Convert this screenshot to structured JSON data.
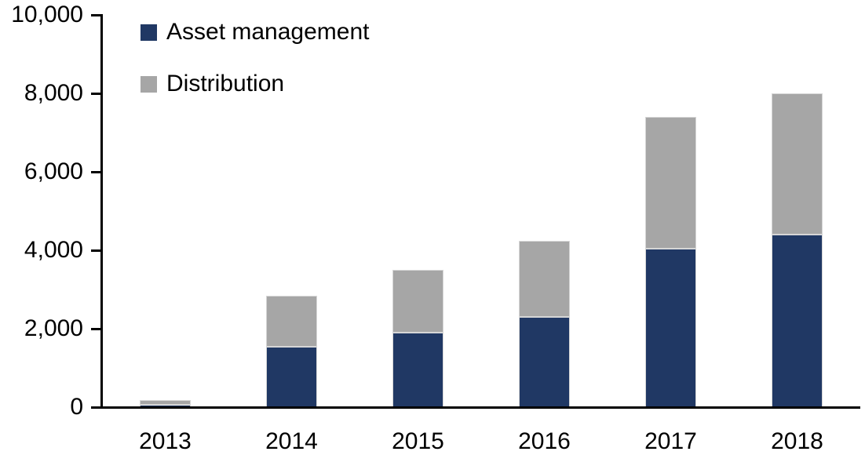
{
  "chart_data": {
    "type": "bar",
    "stacked": true,
    "title": "",
    "xlabel": "",
    "ylabel": "",
    "categories": [
      "2013",
      "2014",
      "2015",
      "2016",
      "2017",
      "2018"
    ],
    "series": [
      {
        "name": "Asset management",
        "color": "#203864",
        "values": [
          70,
          1550,
          1900,
          2300,
          4050,
          4400
        ]
      },
      {
        "name": "Distribution",
        "color": "#A6A6A6",
        "values": [
          120,
          1300,
          1600,
          1950,
          3350,
          3600
        ]
      }
    ],
    "ylim": [
      0,
      10000
    ],
    "y_tick_values": [
      0,
      2000,
      4000,
      6000,
      8000,
      10000
    ],
    "y_tick_labels": [
      "0",
      "2,000",
      "4,000",
      "6,000",
      "8,000",
      "10,000"
    ],
    "grid": false,
    "legend_position": "top-left-inside",
    "axis_color": "#000000",
    "background_color": "#ffffff"
  }
}
